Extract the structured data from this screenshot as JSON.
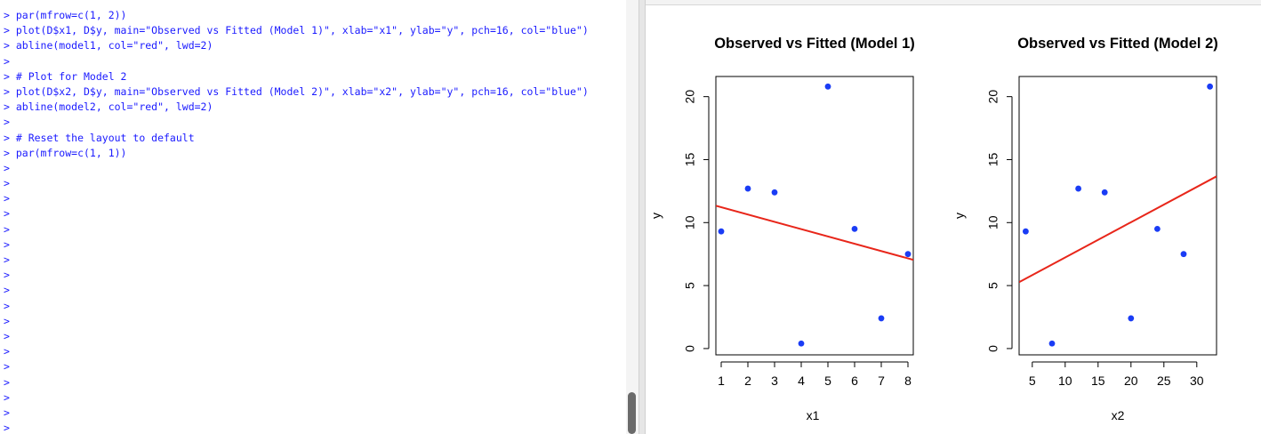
{
  "console": {
    "lines": [
      "> par(mfrow=c(1, 2))",
      "> plot(D$x1, D$y, main=\"Observed vs Fitted (Model 1)\", xlab=\"x1\", ylab=\"y\", pch=16, col=\"blue\")",
      "> abline(model1, col=\"red\", lwd=2)",
      ">",
      "> # Plot for Model 2",
      "> plot(D$x2, D$y, main=\"Observed vs Fitted (Model 2)\", xlab=\"x2\", ylab=\"y\", pch=16, col=\"blue\")",
      "> abline(model2, col=\"red\", lwd=2)",
      ">",
      "> # Reset the layout to default",
      "> par(mfrow=c(1, 1))",
      ">",
      ">",
      ">",
      ">",
      ">",
      ">",
      ">",
      ">",
      ">",
      ">",
      ">",
      ">",
      ">",
      ">",
      ">",
      ">",
      ">",
      ">"
    ],
    "text_color": "#1a1aff"
  },
  "chart_data": [
    {
      "type": "scatter",
      "title": "Observed vs Fitted (Model 1)",
      "xlabel": "x1",
      "ylabel": "y",
      "x": [
        1,
        2,
        3,
        4,
        5,
        6,
        7,
        8
      ],
      "y": [
        9.3,
        12.7,
        12.4,
        0.4,
        20.8,
        9.5,
        2.4,
        7.5
      ],
      "xlim": [
        0.8,
        8.2
      ],
      "ylim": [
        -0.5,
        21.6
      ],
      "xticks": [
        "1",
        "2",
        "3",
        "4",
        "5",
        "6",
        "7",
        "8"
      ],
      "yticks": [
        "0",
        "5",
        "10",
        "15",
        "20"
      ],
      "fit_line": {
        "intercept": 11.8,
        "slope": -0.58
      },
      "point_color": "#1a3cf5",
      "line_color": "#e8261a",
      "grid": false
    },
    {
      "type": "scatter",
      "title": "Observed vs Fitted (Model 2)",
      "xlabel": "x2",
      "ylabel": "y",
      "x": [
        4,
        8,
        12,
        16,
        20,
        24,
        28,
        32
      ],
      "y": [
        9.3,
        0.4,
        12.7,
        12.4,
        2.4,
        9.5,
        7.5,
        20.8
      ],
      "xlim": [
        3,
        33
      ],
      "ylim": [
        -0.5,
        21.6
      ],
      "xticks": [
        "5",
        "10",
        "15",
        "20",
        "25",
        "30"
      ],
      "yticks": [
        "0",
        "5",
        "10",
        "15",
        "20"
      ],
      "fit_line": {
        "intercept": 4.43,
        "slope": 0.28
      },
      "point_color": "#1a3cf5",
      "line_color": "#e8261a",
      "grid": false
    }
  ]
}
